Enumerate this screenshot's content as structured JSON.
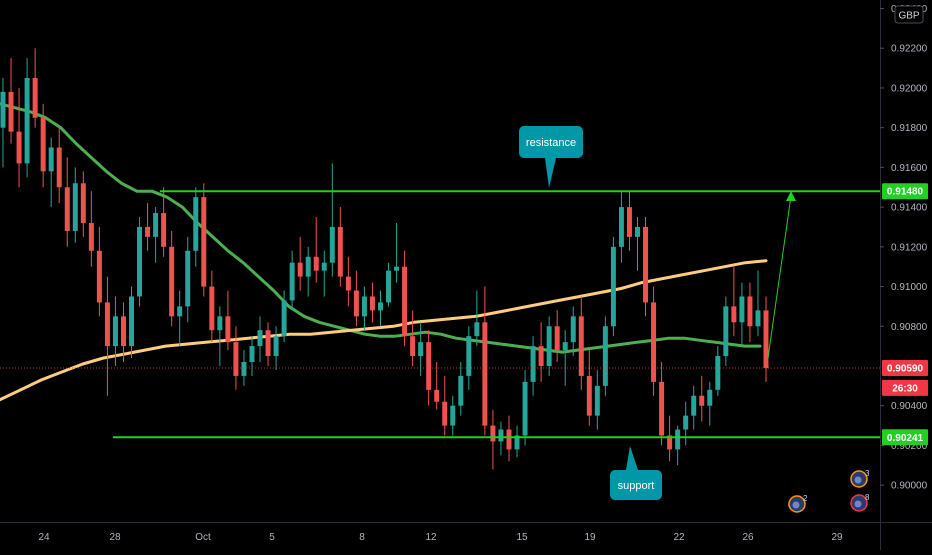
{
  "chart_data": {
    "type": "candlestick",
    "currency_label": "GBP",
    "y_axis": {
      "ylim": [
        0.8986,
        0.9246
      ],
      "ticks": [
        0.924,
        0.922,
        0.92,
        0.918,
        0.916,
        0.914,
        0.912,
        0.91,
        0.908,
        0.904,
        0.902,
        0.9
      ],
      "tick_labels": [
        "0.92400",
        "0.92200",
        "0.92000",
        "0.91800",
        "0.91600",
        "0.91400",
        "0.91200",
        "0.91000",
        "0.90800",
        "0.90400",
        "0.90200",
        "0.90000"
      ]
    },
    "x_axis": {
      "labels": [
        "24",
        "28",
        "Oct",
        "5",
        "8",
        "12",
        "15",
        "19",
        "22",
        "26",
        "29"
      ]
    },
    "price_tags": [
      {
        "label": "0.91480",
        "value": 0.9148,
        "color": "#22d022"
      },
      {
        "label": "0.90590",
        "value": 0.9059,
        "color": "#f23645"
      },
      {
        "label": "26:30",
        "value": 0.9049,
        "color": "#f23645"
      },
      {
        "label": "0.90241",
        "value": 0.90241,
        "color": "#22d022"
      }
    ],
    "levels": [
      {
        "name": "resistance",
        "value": 0.9148,
        "color": "#22d022"
      },
      {
        "name": "support",
        "value": 0.90241,
        "color": "#22d022"
      }
    ],
    "last_price": 0.9059,
    "annotations": [
      {
        "text": "resistance",
        "color": "#0097a7"
      },
      {
        "text": "support",
        "color": "#0097a7"
      }
    ],
    "event_badges": [
      "2",
      "3",
      "8"
    ],
    "candles": [
      {
        "o": 0.918,
        "h": 0.9205,
        "l": 0.916,
        "c": 0.9198
      },
      {
        "o": 0.9198,
        "h": 0.9215,
        "l": 0.9172,
        "c": 0.9178
      },
      {
        "o": 0.9178,
        "h": 0.92,
        "l": 0.915,
        "c": 0.9162
      },
      {
        "o": 0.9162,
        "h": 0.9215,
        "l": 0.9155,
        "c": 0.9205
      },
      {
        "o": 0.9205,
        "h": 0.922,
        "l": 0.918,
        "c": 0.9185
      },
      {
        "o": 0.9185,
        "h": 0.9192,
        "l": 0.915,
        "c": 0.9158
      },
      {
        "o": 0.9158,
        "h": 0.9175,
        "l": 0.914,
        "c": 0.917
      },
      {
        "o": 0.917,
        "h": 0.918,
        "l": 0.9142,
        "c": 0.915
      },
      {
        "o": 0.915,
        "h": 0.9165,
        "l": 0.912,
        "c": 0.9128
      },
      {
        "o": 0.9128,
        "h": 0.916,
        "l": 0.9122,
        "c": 0.9152
      },
      {
        "o": 0.9152,
        "h": 0.9158,
        "l": 0.9125,
        "c": 0.9132
      },
      {
        "o": 0.9132,
        "h": 0.9148,
        "l": 0.911,
        "c": 0.9118
      },
      {
        "o": 0.9118,
        "h": 0.913,
        "l": 0.9085,
        "c": 0.9092
      },
      {
        "o": 0.9092,
        "h": 0.9105,
        "l": 0.9045,
        "c": 0.907
      },
      {
        "o": 0.907,
        "h": 0.9095,
        "l": 0.906,
        "c": 0.9085
      },
      {
        "o": 0.9085,
        "h": 0.9092,
        "l": 0.9062,
        "c": 0.907
      },
      {
        "o": 0.907,
        "h": 0.91,
        "l": 0.9064,
        "c": 0.9095
      },
      {
        "o": 0.9095,
        "h": 0.9135,
        "l": 0.909,
        "c": 0.913
      },
      {
        "o": 0.913,
        "h": 0.9142,
        "l": 0.9118,
        "c": 0.9125
      },
      {
        "o": 0.9125,
        "h": 0.914,
        "l": 0.9112,
        "c": 0.9137
      },
      {
        "o": 0.9137,
        "h": 0.915,
        "l": 0.9115,
        "c": 0.912
      },
      {
        "o": 0.912,
        "h": 0.9128,
        "l": 0.908,
        "c": 0.9085
      },
      {
        "o": 0.9085,
        "h": 0.9098,
        "l": 0.907,
        "c": 0.909
      },
      {
        "o": 0.909,
        "h": 0.9125,
        "l": 0.9082,
        "c": 0.9118
      },
      {
        "o": 0.9118,
        "h": 0.915,
        "l": 0.911,
        "c": 0.9145
      },
      {
        "o": 0.9145,
        "h": 0.9152,
        "l": 0.9095,
        "c": 0.91
      },
      {
        "o": 0.91,
        "h": 0.9108,
        "l": 0.9072,
        "c": 0.9078
      },
      {
        "o": 0.9078,
        "h": 0.909,
        "l": 0.906,
        "c": 0.9085
      },
      {
        "o": 0.9085,
        "h": 0.9098,
        "l": 0.9068,
        "c": 0.9072
      },
      {
        "o": 0.9072,
        "h": 0.908,
        "l": 0.9048,
        "c": 0.9055
      },
      {
        "o": 0.9055,
        "h": 0.9068,
        "l": 0.905,
        "c": 0.9062
      },
      {
        "o": 0.9062,
        "h": 0.9075,
        "l": 0.9055,
        "c": 0.907
      },
      {
        "o": 0.907,
        "h": 0.9085,
        "l": 0.9062,
        "c": 0.9078
      },
      {
        "o": 0.9078,
        "h": 0.9082,
        "l": 0.906,
        "c": 0.9065
      },
      {
        "o": 0.9065,
        "h": 0.908,
        "l": 0.9058,
        "c": 0.9075
      },
      {
        "o": 0.9075,
        "h": 0.9098,
        "l": 0.9072,
        "c": 0.9093
      },
      {
        "o": 0.9093,
        "h": 0.9118,
        "l": 0.9088,
        "c": 0.9112
      },
      {
        "o": 0.9112,
        "h": 0.9125,
        "l": 0.9098,
        "c": 0.9105
      },
      {
        "o": 0.9105,
        "h": 0.912,
        "l": 0.9095,
        "c": 0.9115
      },
      {
        "o": 0.9115,
        "h": 0.9135,
        "l": 0.9102,
        "c": 0.9108
      },
      {
        "o": 0.9108,
        "h": 0.9118,
        "l": 0.9095,
        "c": 0.9112
      },
      {
        "o": 0.9112,
        "h": 0.9162,
        "l": 0.9105,
        "c": 0.913
      },
      {
        "o": 0.913,
        "h": 0.914,
        "l": 0.91,
        "c": 0.9105
      },
      {
        "o": 0.9105,
        "h": 0.9115,
        "l": 0.909,
        "c": 0.9098
      },
      {
        "o": 0.9098,
        "h": 0.9108,
        "l": 0.908,
        "c": 0.9085
      },
      {
        "o": 0.9085,
        "h": 0.91,
        "l": 0.9078,
        "c": 0.9095
      },
      {
        "o": 0.9095,
        "h": 0.9102,
        "l": 0.9082,
        "c": 0.9088
      },
      {
        "o": 0.9088,
        "h": 0.9098,
        "l": 0.908,
        "c": 0.9092
      },
      {
        "o": 0.9092,
        "h": 0.9112,
        "l": 0.909,
        "c": 0.9108
      },
      {
        "o": 0.9108,
        "h": 0.9132,
        "l": 0.9102,
        "c": 0.911
      },
      {
        "o": 0.911,
        "h": 0.9118,
        "l": 0.907,
        "c": 0.9075
      },
      {
        "o": 0.9075,
        "h": 0.9088,
        "l": 0.906,
        "c": 0.9065
      },
      {
        "o": 0.9065,
        "h": 0.9082,
        "l": 0.9055,
        "c": 0.9072
      },
      {
        "o": 0.9072,
        "h": 0.9078,
        "l": 0.904,
        "c": 0.9048
      },
      {
        "o": 0.9048,
        "h": 0.9062,
        "l": 0.9038,
        "c": 0.9042
      },
      {
        "o": 0.9042,
        "h": 0.9055,
        "l": 0.9025,
        "c": 0.903
      },
      {
        "o": 0.903,
        "h": 0.9045,
        "l": 0.9025,
        "c": 0.904
      },
      {
        "o": 0.904,
        "h": 0.9062,
        "l": 0.9035,
        "c": 0.9055
      },
      {
        "o": 0.9055,
        "h": 0.908,
        "l": 0.9048,
        "c": 0.9075
      },
      {
        "o": 0.9075,
        "h": 0.9098,
        "l": 0.907,
        "c": 0.9082
      },
      {
        "o": 0.9082,
        "h": 0.91,
        "l": 0.9025,
        "c": 0.903
      },
      {
        "o": 0.903,
        "h": 0.9038,
        "l": 0.9008,
        "c": 0.9022
      },
      {
        "o": 0.9022,
        "h": 0.9032,
        "l": 0.9015,
        "c": 0.9028
      },
      {
        "o": 0.9028,
        "h": 0.9035,
        "l": 0.9012,
        "c": 0.9018
      },
      {
        "o": 0.9018,
        "h": 0.903,
        "l": 0.9014,
        "c": 0.9025
      },
      {
        "o": 0.9025,
        "h": 0.9058,
        "l": 0.902,
        "c": 0.9052
      },
      {
        "o": 0.9052,
        "h": 0.9075,
        "l": 0.9045,
        "c": 0.907
      },
      {
        "o": 0.907,
        "h": 0.9082,
        "l": 0.9052,
        "c": 0.906
      },
      {
        "o": 0.906,
        "h": 0.9085,
        "l": 0.9055,
        "c": 0.908
      },
      {
        "o": 0.908,
        "h": 0.9088,
        "l": 0.9062,
        "c": 0.9068
      },
      {
        "o": 0.9068,
        "h": 0.9078,
        "l": 0.905,
        "c": 0.9072
      },
      {
        "o": 0.9072,
        "h": 0.909,
        "l": 0.9065,
        "c": 0.9085
      },
      {
        "o": 0.9085,
        "h": 0.9095,
        "l": 0.9048,
        "c": 0.9055
      },
      {
        "o": 0.9055,
        "h": 0.9068,
        "l": 0.903,
        "c": 0.9035
      },
      {
        "o": 0.9035,
        "h": 0.9058,
        "l": 0.9028,
        "c": 0.905
      },
      {
        "o": 0.905,
        "h": 0.9085,
        "l": 0.9045,
        "c": 0.908
      },
      {
        "o": 0.908,
        "h": 0.9125,
        "l": 0.9075,
        "c": 0.912
      },
      {
        "o": 0.912,
        "h": 0.9148,
        "l": 0.9112,
        "c": 0.914
      },
      {
        "o": 0.914,
        "h": 0.9148,
        "l": 0.9118,
        "c": 0.9125
      },
      {
        "o": 0.9125,
        "h": 0.9135,
        "l": 0.9108,
        "c": 0.913
      },
      {
        "o": 0.913,
        "h": 0.9135,
        "l": 0.9085,
        "c": 0.9092
      },
      {
        "o": 0.9092,
        "h": 0.91,
        "l": 0.9045,
        "c": 0.9052
      },
      {
        "o": 0.9052,
        "h": 0.9062,
        "l": 0.902,
        "c": 0.9025
      },
      {
        "o": 0.9025,
        "h": 0.9035,
        "l": 0.9012,
        "c": 0.9018
      },
      {
        "o": 0.9018,
        "h": 0.903,
        "l": 0.901,
        "c": 0.9028
      },
      {
        "o": 0.9028,
        "h": 0.9042,
        "l": 0.902,
        "c": 0.9035
      },
      {
        "o": 0.9035,
        "h": 0.905,
        "l": 0.9028,
        "c": 0.9045
      },
      {
        "o": 0.9045,
        "h": 0.9055,
        "l": 0.9032,
        "c": 0.904
      },
      {
        "o": 0.904,
        "h": 0.9052,
        "l": 0.903,
        "c": 0.9048
      },
      {
        "o": 0.9048,
        "h": 0.907,
        "l": 0.9045,
        "c": 0.9065
      },
      {
        "o": 0.9065,
        "h": 0.9095,
        "l": 0.906,
        "c": 0.909
      },
      {
        "o": 0.909,
        "h": 0.911,
        "l": 0.9075,
        "c": 0.9082
      },
      {
        "o": 0.9082,
        "h": 0.9102,
        "l": 0.907,
        "c": 0.9095
      },
      {
        "o": 0.9095,
        "h": 0.9102,
        "l": 0.9072,
        "c": 0.908
      },
      {
        "o": 0.908,
        "h": 0.9108,
        "l": 0.9075,
        "c": 0.9088
      },
      {
        "o": 0.9088,
        "h": 0.9095,
        "l": 0.9052,
        "c": 0.9059
      }
    ],
    "series": [
      {
        "values": [
          0.9192,
          0.919,
          0.9188,
          0.9185,
          0.918,
          0.9172,
          0.9165,
          0.9158,
          0.9152,
          0.9148,
          0.9148,
          0.9145,
          0.914,
          0.9132,
          0.9125,
          0.9118,
          0.9112,
          0.9105,
          0.9098,
          0.909,
          0.9085,
          0.9082,
          0.908,
          0.9078,
          0.9076,
          0.9075,
          0.9075,
          0.9076,
          0.9077,
          0.9076,
          0.9074,
          0.9073,
          0.9072,
          0.9071,
          0.907,
          0.9069,
          0.9068,
          0.9067,
          0.9068,
          0.9069,
          0.907,
          0.9071,
          0.9072,
          0.9073,
          0.9074,
          0.9074,
          0.9073,
          0.9072,
          0.9071,
          0.907,
          0.907
        ]
      },
      {
        "values": [
          0.9043,
          0.9048,
          0.9053,
          0.9057,
          0.9061,
          0.9064,
          0.9066,
          0.9068,
          0.907,
          0.9071,
          0.9072,
          0.9073,
          0.9074,
          0.9075,
          0.9076,
          0.9076,
          0.9077,
          0.9078,
          0.9079,
          0.908,
          0.9082,
          0.9083,
          0.9084,
          0.9085,
          0.9087,
          0.9089,
          0.9091,
          0.9093,
          0.9095,
          0.9097,
          0.9099,
          0.9102,
          0.9104,
          0.9106,
          0.9108,
          0.911,
          0.9112,
          0.9113
        ]
      }
    ]
  }
}
